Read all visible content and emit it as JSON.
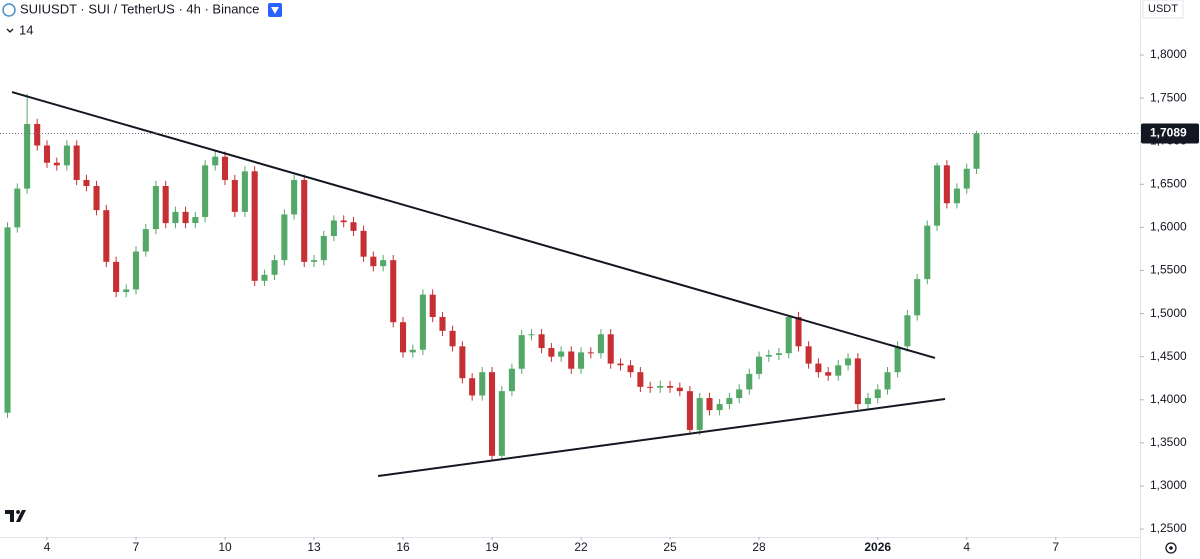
{
  "chart_data": {
    "type": "candlestick",
    "title": "SUIUSDT · SUI / TetherUS · 4h · Binance",
    "indicator": "14",
    "currency": "USDT",
    "up_color": "#53a868",
    "down_color": "#c62f33",
    "xlim": [
      2.416,
      40.84
    ],
    "ylim": [
      1.2408,
      1.8638
    ],
    "xticks": [
      4,
      7,
      10,
      13,
      16,
      19,
      22,
      25,
      28,
      {
        "value": 32,
        "label": "2026"
      },
      {
        "value": 35,
        "label": "4"
      },
      {
        "value": 38,
        "label": "7"
      }
    ],
    "yticks": [
      {
        "value": 1.25,
        "label": "1,2500"
      },
      {
        "value": 1.3,
        "label": "1,3000"
      },
      {
        "value": 1.35,
        "label": "1,3500"
      },
      {
        "value": 1.4,
        "label": "1,4000"
      },
      {
        "value": 1.45,
        "label": "1,4500"
      },
      {
        "value": 1.5,
        "label": "1,5000"
      },
      {
        "value": 1.55,
        "label": "1,5500"
      },
      {
        "value": 1.6,
        "label": "1,6000"
      },
      {
        "value": 1.65,
        "label": "1,6500"
      },
      {
        "value": 1.7,
        "label": "1,7000"
      },
      {
        "value": 1.75,
        "label": "1,7500"
      },
      {
        "value": 1.8,
        "label": "1,8000"
      }
    ],
    "last_price": {
      "value": 1.7089,
      "label": "1,7089"
    },
    "x": [
      2.67,
      3,
      3.33,
      3.67,
      4,
      4.33,
      4.67,
      5,
      5.33,
      5.67,
      6,
      6.33,
      6.67,
      7,
      7.33,
      7.67,
      8,
      8.33,
      8.67,
      9,
      9.33,
      9.67,
      10,
      10.33,
      10.67,
      11,
      11.33,
      11.67,
      12,
      12.33,
      12.67,
      13,
      13.33,
      13.67,
      14,
      14.33,
      14.67,
      15,
      15.33,
      15.67,
      16,
      16.33,
      16.67,
      17,
      17.33,
      17.67,
      18,
      18.33,
      18.67,
      19,
      19.33,
      19.67,
      20,
      20.33,
      20.67,
      21,
      21.33,
      21.67,
      22,
      22.33,
      22.67,
      23,
      23.33,
      23.67,
      24,
      24.33,
      24.67,
      25,
      25.33,
      25.67,
      26,
      26.33,
      26.67,
      27,
      27.33,
      27.67,
      28,
      28.33,
      28.67,
      29,
      29.33,
      29.67,
      30,
      30.33,
      30.67,
      31,
      31.33,
      31.67,
      32,
      32.33,
      32.67,
      33,
      33.33,
      33.67,
      34,
      34.33,
      34.67,
      35,
      35.33
    ],
    "open": [
      1.385,
      1.6,
      1.645,
      1.72,
      1.695,
      1.675,
      1.672,
      1.695,
      1.655,
      1.648,
      1.62,
      1.56,
      1.525,
      1.528,
      1.572,
      1.598,
      1.648,
      1.605,
      1.618,
      1.605,
      1.612,
      1.672,
      1.682,
      1.655,
      1.618,
      1.665,
      1.538,
      1.545,
      1.562,
      1.615,
      1.655,
      1.56,
      1.562,
      1.59,
      1.608,
      1.606,
      1.596,
      1.566,
      1.555,
      1.562,
      1.49,
      1.455,
      1.458,
      1.522,
      1.496,
      1.48,
      1.462,
      1.425,
      1.405,
      1.432,
      1.335,
      1.41,
      1.436,
      1.475,
      1.476,
      1.46,
      1.45,
      1.456,
      1.436,
      1.455,
      1.454,
      1.476,
      1.442,
      1.44,
      1.432,
      1.415,
      1.414,
      1.416,
      1.414,
      1.41,
      1.365,
      1.402,
      1.388,
      1.395,
      1.402,
      1.412,
      1.43,
      1.45,
      1.452,
      1.454,
      1.496,
      1.462,
      1.442,
      1.432,
      1.428,
      1.44,
      1.448,
      1.395,
      1.402,
      1.412,
      1.432,
      1.462,
      1.498,
      1.54,
      1.602,
      1.672,
      1.628,
      1.645,
      1.668
    ],
    "high": [
      1.606,
      1.651,
      1.755,
      1.726,
      1.701,
      1.681,
      1.701,
      1.701,
      1.661,
      1.654,
      1.626,
      1.566,
      1.534,
      1.578,
      1.604,
      1.654,
      1.654,
      1.624,
      1.624,
      1.618,
      1.678,
      1.688,
      1.688,
      1.661,
      1.671,
      1.671,
      1.551,
      1.568,
      1.621,
      1.661,
      1.661,
      1.568,
      1.596,
      1.614,
      1.614,
      1.612,
      1.602,
      1.572,
      1.568,
      1.568,
      1.496,
      1.464,
      1.528,
      1.528,
      1.502,
      1.486,
      1.468,
      1.431,
      1.438,
      1.438,
      1.416,
      1.442,
      1.481,
      1.482,
      1.482,
      1.466,
      1.462,
      1.462,
      1.461,
      1.461,
      1.482,
      1.482,
      1.448,
      1.446,
      1.438,
      1.421,
      1.422,
      1.422,
      1.42,
      1.416,
      1.408,
      1.408,
      1.401,
      1.408,
      1.418,
      1.436,
      1.456,
      1.458,
      1.46,
      1.498,
      1.502,
      1.468,
      1.448,
      1.438,
      1.446,
      1.454,
      1.454,
      1.408,
      1.418,
      1.438,
      1.468,
      1.504,
      1.546,
      1.608,
      1.675,
      1.678,
      1.651,
      1.674,
      1.712
    ],
    "low": [
      1.379,
      1.594,
      1.639,
      1.689,
      1.669,
      1.666,
      1.666,
      1.649,
      1.642,
      1.614,
      1.554,
      1.519,
      1.519,
      1.522,
      1.566,
      1.592,
      1.599,
      1.599,
      1.599,
      1.599,
      1.606,
      1.666,
      1.649,
      1.612,
      1.612,
      1.532,
      1.532,
      1.539,
      1.556,
      1.609,
      1.554,
      1.554,
      1.556,
      1.584,
      1.6,
      1.59,
      1.56,
      1.549,
      1.549,
      1.484,
      1.449,
      1.449,
      1.452,
      1.49,
      1.474,
      1.456,
      1.419,
      1.399,
      1.399,
      1.33,
      1.331,
      1.404,
      1.43,
      1.469,
      1.454,
      1.444,
      1.444,
      1.43,
      1.43,
      1.448,
      1.448,
      1.436,
      1.434,
      1.426,
      1.409,
      1.408,
      1.408,
      1.408,
      1.404,
      1.362,
      1.359,
      1.382,
      1.382,
      1.389,
      1.396,
      1.406,
      1.424,
      1.444,
      1.446,
      1.448,
      1.456,
      1.436,
      1.426,
      1.422,
      1.422,
      1.434,
      1.389,
      1.389,
      1.396,
      1.406,
      1.426,
      1.456,
      1.492,
      1.534,
      1.596,
      1.622,
      1.622,
      1.639,
      1.662
    ],
    "close": [
      1.6,
      1.645,
      1.72,
      1.695,
      1.675,
      1.672,
      1.695,
      1.655,
      1.648,
      1.62,
      1.56,
      1.525,
      1.528,
      1.572,
      1.598,
      1.648,
      1.605,
      1.618,
      1.605,
      1.612,
      1.672,
      1.682,
      1.655,
      1.618,
      1.665,
      1.538,
      1.545,
      1.562,
      1.615,
      1.655,
      1.56,
      1.562,
      1.59,
      1.608,
      1.606,
      1.596,
      1.566,
      1.555,
      1.562,
      1.49,
      1.455,
      1.458,
      1.522,
      1.496,
      1.48,
      1.462,
      1.425,
      1.405,
      1.432,
      1.335,
      1.41,
      1.436,
      1.475,
      1.476,
      1.46,
      1.45,
      1.456,
      1.436,
      1.455,
      1.454,
      1.476,
      1.442,
      1.44,
      1.432,
      1.415,
      1.414,
      1.416,
      1.414,
      1.41,
      1.365,
      1.402,
      1.388,
      1.395,
      1.402,
      1.412,
      1.43,
      1.45,
      1.452,
      1.454,
      1.496,
      1.462,
      1.442,
      1.432,
      1.428,
      1.44,
      1.448,
      1.395,
      1.402,
      1.412,
      1.432,
      1.462,
      1.498,
      1.54,
      1.602,
      1.672,
      1.628,
      1.645,
      1.668,
      1.709
    ],
    "trendlines": [
      {
        "x": [
          2.82,
          33.93
        ],
        "y": [
          1.757,
          1.4485
        ]
      },
      {
        "x": [
          15.16,
          34.27
        ],
        "y": [
          1.3116,
          1.4009
        ]
      }
    ]
  }
}
